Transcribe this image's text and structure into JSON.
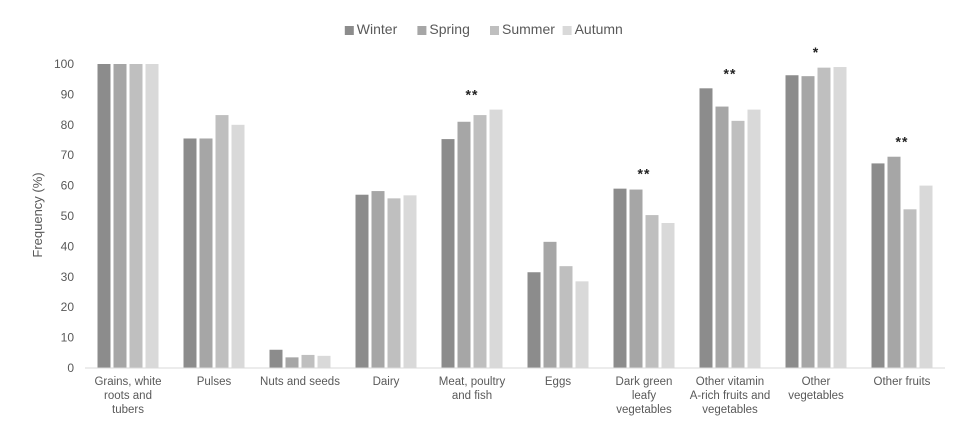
{
  "chart_data": {
    "type": "bar",
    "title": "",
    "xlabel": "",
    "ylabel": "Frequency (%)",
    "ylim": [
      0,
      100
    ],
    "yticks": [
      0,
      10,
      20,
      30,
      40,
      50,
      60,
      70,
      80,
      90,
      100
    ],
    "grid": false,
    "legend_position": "top-center",
    "categories": [
      "Grains, white roots and tubers",
      "Pulses",
      "Nuts and seeds",
      "Dairy",
      "Meat, poultry and fish",
      "Eggs",
      "Dark green leafy vegetables",
      "Other vitamin A-rich fruits and vegetables",
      "Other vegetables",
      "Other fruits"
    ],
    "category_label_lines": [
      [
        "Grains, white",
        "roots and",
        "tubers"
      ],
      [
        "Pulses"
      ],
      [
        "Nuts and seeds"
      ],
      [
        "Dairy"
      ],
      [
        "Meat, poultry",
        "and fish"
      ],
      [
        "Eggs"
      ],
      [
        "Dark green",
        "leafy",
        "vegetables"
      ],
      [
        "Other vitamin",
        "A-rich fruits and",
        "vegetables"
      ],
      [
        "Other",
        "vegetables"
      ],
      [
        "Other fruits"
      ]
    ],
    "series": [
      {
        "name": "Winter",
        "color": "#8c8c8c",
        "values": [
          100,
          75.5,
          6,
          57,
          75.3,
          31.5,
          59,
          92,
          96.3,
          67.3
        ]
      },
      {
        "name": "Spring",
        "color": "#a6a6a6",
        "values": [
          100,
          75.5,
          3.5,
          58.2,
          81,
          41.5,
          58.7,
          86,
          96,
          69.5
        ]
      },
      {
        "name": "Summer",
        "color": "#bfbfbf",
        "values": [
          100,
          83.2,
          4.3,
          55.8,
          83.2,
          33.5,
          50.3,
          81.3,
          98.8,
          52.2
        ]
      },
      {
        "name": "Autumn",
        "color": "#d9d9d9",
        "values": [
          100,
          80,
          4,
          56.8,
          85,
          28.5,
          47.7,
          85,
          99,
          60
        ]
      }
    ],
    "annotations": [
      "",
      "",
      "",
      "",
      "**",
      "",
      "**",
      "**",
      "*",
      "**"
    ]
  }
}
